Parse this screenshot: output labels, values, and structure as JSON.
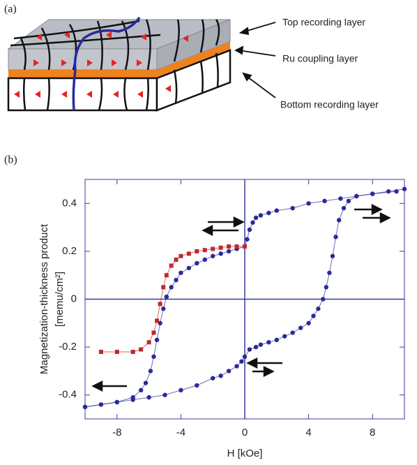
{
  "panel_labels": [
    "(a)",
    "(b)"
  ],
  "diagram": {
    "labels": [
      "Top recording layer",
      "Ru coupling layer",
      "Bottom recording layer"
    ]
  },
  "chart_data": {
    "type": "line",
    "xlabel": "H [kOe]",
    "ylabel": [
      "Magnetization-thickness product",
      "[memu/cm²]"
    ],
    "xlim": [
      -10,
      10
    ],
    "ylim": [
      -0.5,
      0.5
    ],
    "xticks": [
      -8,
      -4,
      0,
      4,
      8
    ],
    "yticks": [
      0.4,
      0.2,
      0,
      -0.2,
      -0.4
    ],
    "axis_color": "#3a3aa0",
    "series": [
      {
        "color": "#2a2a9a",
        "marker": "circle",
        "x": [
          9.5,
          8,
          7,
          6,
          5,
          4,
          3,
          2,
          1.5,
          1,
          0.7,
          0.5,
          0.3,
          0.15,
          0,
          -0.5,
          -1,
          -1.5,
          -2,
          -2.5,
          -3,
          -3.5,
          -4,
          -4.3,
          -4.6,
          -4.9,
          -5.1,
          -5.3,
          -5.5,
          -5.7,
          -5.9,
          -6.2,
          -6.5,
          -7,
          -8,
          -9,
          -10
        ],
        "values": [
          0.45,
          0.44,
          0.43,
          0.42,
          0.41,
          0.4,
          0.38,
          0.37,
          0.36,
          0.35,
          0.34,
          0.32,
          0.29,
          0.25,
          0.22,
          0.21,
          0.2,
          0.19,
          0.18,
          0.165,
          0.15,
          0.13,
          0.11,
          0.08,
          0.05,
          0.01,
          -0.04,
          -0.1,
          -0.17,
          -0.24,
          -0.3,
          -0.35,
          -0.38,
          -0.41,
          -0.43,
          -0.44,
          -0.45
        ]
      },
      {
        "color": "#2a2a9a",
        "marker": "circle",
        "x": [
          -10,
          -9,
          -8,
          -7,
          -6,
          -5,
          -4,
          -3,
          -2,
          -1.5,
          -1,
          -0.5,
          -0.2,
          0,
          0.3,
          0.7,
          1,
          1.5,
          2,
          2.5,
          3,
          3.5,
          4,
          4.3,
          4.6,
          4.9,
          5.1,
          5.3,
          5.5,
          5.7,
          5.9,
          6.2,
          6.5,
          7,
          8,
          9,
          10
        ],
        "values": [
          -0.45,
          -0.44,
          -0.43,
          -0.42,
          -0.41,
          -0.4,
          -0.38,
          -0.36,
          -0.33,
          -0.32,
          -0.3,
          -0.28,
          -0.26,
          -0.24,
          -0.21,
          -0.2,
          -0.19,
          -0.18,
          -0.17,
          -0.155,
          -0.14,
          -0.12,
          -0.1,
          -0.07,
          -0.04,
          0.0,
          0.05,
          0.11,
          0.18,
          0.26,
          0.33,
          0.38,
          0.41,
          0.43,
          0.44,
          0.45,
          0.46
        ]
      },
      {
        "color": "#c0282a",
        "marker": "square",
        "x": [
          0,
          -0.5,
          -1,
          -1.5,
          -2,
          -2.5,
          -3,
          -3.5,
          -4,
          -4.3,
          -4.6,
          -4.9,
          -5.1,
          -5.3,
          -5.5,
          -5.7,
          -6,
          -6.5,
          -7,
          -8,
          -9
        ],
        "values": [
          0.22,
          0.22,
          0.22,
          0.215,
          0.21,
          0.205,
          0.2,
          0.19,
          0.18,
          0.165,
          0.14,
          0.1,
          0.05,
          -0.02,
          -0.09,
          -0.14,
          -0.18,
          -0.21,
          -0.22,
          -0.22,
          -0.22
        ]
      }
    ]
  }
}
